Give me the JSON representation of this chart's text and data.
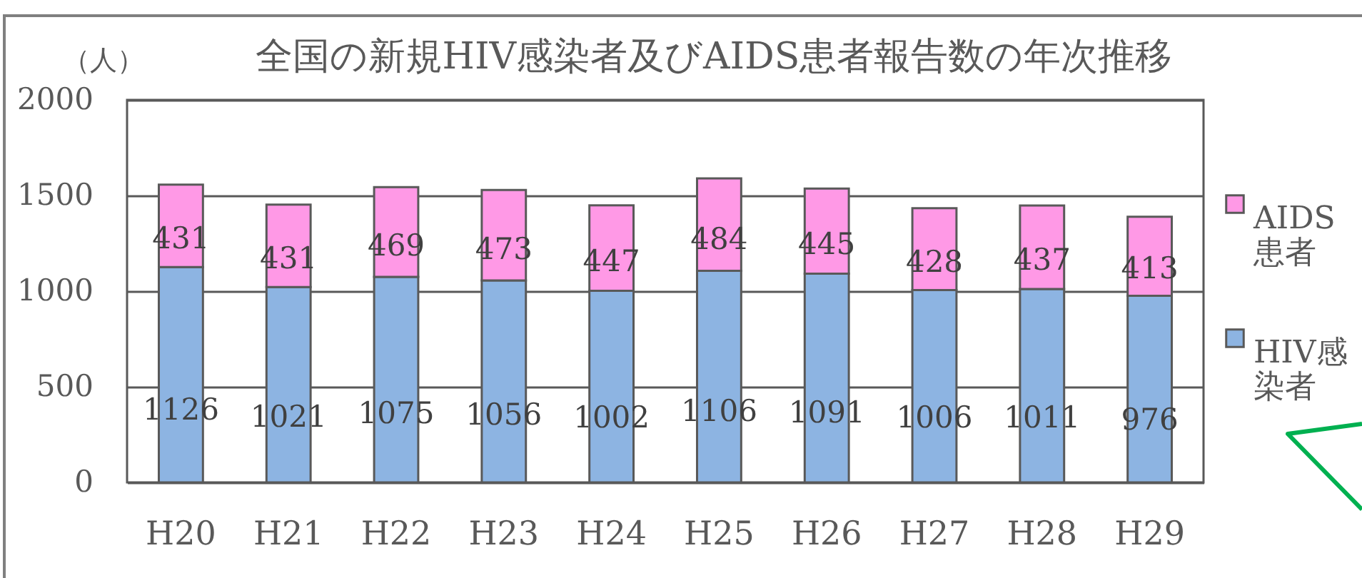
{
  "chart_data": {
    "type": "bar",
    "title": "全国の新規HIV感染者及びAIDS患者報告数の年次推移",
    "ylabel": "（人）",
    "categories": [
      "H20",
      "H21",
      "H22",
      "H23",
      "H24",
      "H25",
      "H26",
      "H27",
      "H28",
      "H29"
    ],
    "series": [
      {
        "name": "HIV感染者",
        "color": "#8db4e2",
        "values": [
          1126,
          1021,
          1075,
          1056,
          1002,
          1106,
          1091,
          1006,
          1011,
          976
        ]
      },
      {
        "name": "AIDS患者",
        "color": "#ff99e6",
        "values": [
          431,
          431,
          469,
          473,
          447,
          484,
          445,
          428,
          437,
          413
        ]
      }
    ],
    "stacked": true,
    "ylim": [
      0,
      2000
    ],
    "yticks": [
      0,
      500,
      1000,
      1500,
      2000
    ],
    "grid": "y",
    "legend": "right",
    "data_labels": true
  }
}
